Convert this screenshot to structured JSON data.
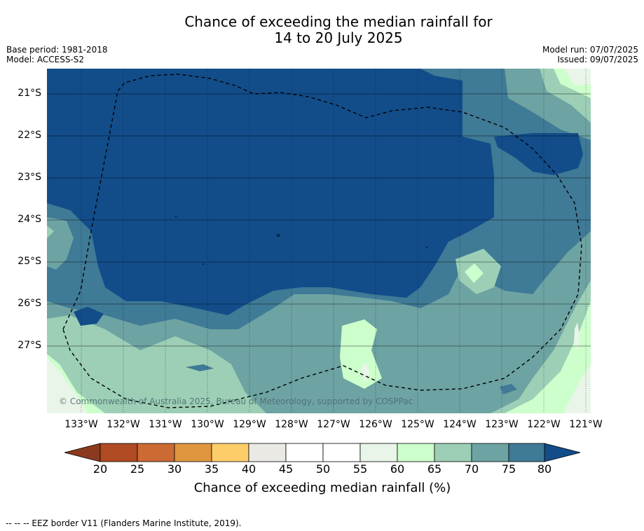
{
  "title": {
    "line1": "Chance of exceeding the median rainfall for",
    "line2": "14 to 20 July 2025"
  },
  "meta": {
    "base_period": "Base period: 1981-2018",
    "model": "Model: ACCESS-S2",
    "model_run": "Model run: 07/07/2025",
    "issued": "Issued: 09/07/2025"
  },
  "map": {
    "lat_labels": [
      "21°S",
      "22°S",
      "23°S",
      "24°S",
      "25°S",
      "26°S",
      "27°S"
    ],
    "lon_labels": [
      "133°W",
      "132°W",
      "131°W",
      "130°W",
      "129°W",
      "128°W",
      "127°W",
      "126°W",
      "125°W",
      "124°W",
      "123°W",
      "122°W",
      "121°W"
    ],
    "copyright": "© Commonwealth of Australia 2025, Bureau of Meteorology, supported by COSPPac"
  },
  "colorbar": {
    "ticks": [
      "20",
      "25",
      "30",
      "35",
      "40",
      "45",
      "50",
      "55",
      "60",
      "65",
      "70",
      "75",
      "80"
    ],
    "colors": [
      "#8c3a1e",
      "#b04a22",
      "#cc6a34",
      "#e0963f",
      "#fdcd6a",
      "#ebe9e4",
      "#ffffff",
      "#ffffff",
      "#e9f5e9",
      "#ccffcc",
      "#9ccfb5",
      "#6ea3a3",
      "#3f7a96",
      "#124d8a"
    ],
    "label": "Chance of exceeding median rainfall (%)"
  },
  "footnote": "--  --  -- EEZ border V11 (Flanders Marine Institute, 2019)."
}
